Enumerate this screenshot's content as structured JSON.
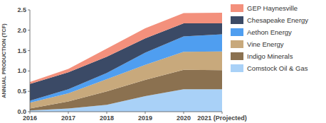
{
  "chart_data": {
    "type": "area",
    "stacked": true,
    "ylabel": "ANNUAL PRODUCTION (TCF)",
    "categories": [
      "2016",
      "2017",
      "2018",
      "2019",
      "2020",
      "2021 (Projected)"
    ],
    "series": [
      {
        "name": "Comstock Oil & Gas",
        "color": "#a9d1f7",
        "values": [
          0.03,
          0.08,
          0.17,
          0.38,
          0.55,
          0.55
        ]
      },
      {
        "name": "Indigo Minerals",
        "color": "#8b7150",
        "values": [
          0.05,
          0.17,
          0.33,
          0.4,
          0.48,
          0.47
        ]
      },
      {
        "name": "Vine Energy",
        "color": "#c8a97c",
        "values": [
          0.14,
          0.2,
          0.3,
          0.37,
          0.44,
          0.46
        ]
      },
      {
        "name": "Aethon Energy",
        "color": "#4f9ef0",
        "values": [
          0.05,
          0.1,
          0.15,
          0.3,
          0.38,
          0.42
        ]
      },
      {
        "name": "Chesapeake Energy",
        "color": "#3b4a66",
        "values": [
          0.41,
          0.42,
          0.4,
          0.35,
          0.32,
          0.27
        ]
      },
      {
        "name": "GEP Haynesville",
        "color": "#f3907c",
        "values": [
          0.05,
          0.08,
          0.2,
          0.25,
          0.25,
          0.26
        ]
      }
    ],
    "ylim": [
      0,
      2.5
    ],
    "yticks": [
      {
        "value": 0,
        "label": "0.0"
      },
      0.5,
      {
        "value": 1,
        "label": "1.0"
      },
      1.5,
      {
        "value": 2,
        "label": "2.0"
      },
      2.5
    ],
    "grid": false,
    "legend": "top-right"
  }
}
